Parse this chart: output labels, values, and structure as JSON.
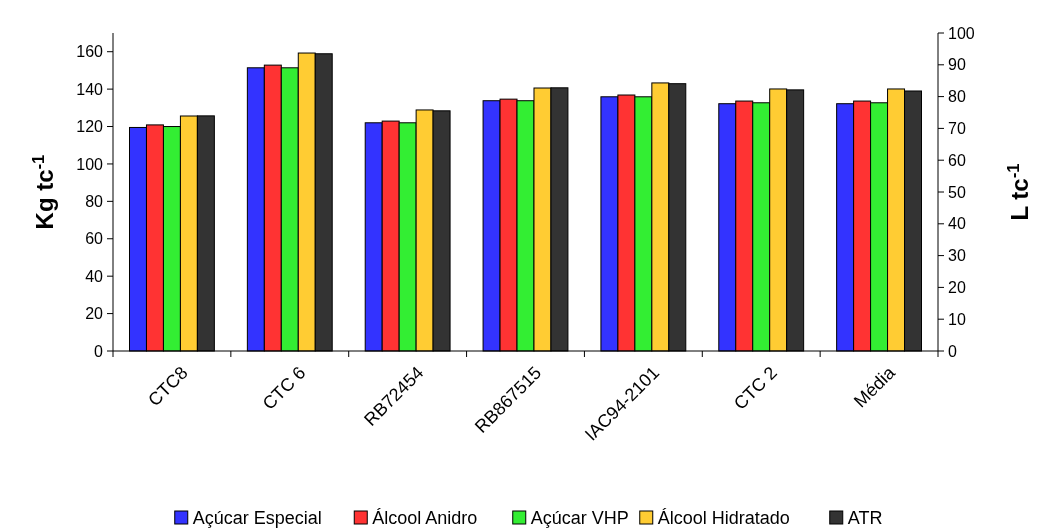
{
  "chart_data": {
    "type": "bar",
    "categories": [
      "CTC8",
      "CTC 6",
      "RB72454",
      "RB867515",
      "IAC94-2101",
      "CTC 2",
      "Média"
    ],
    "ylabel": "Kg tc$^{-1}$",
    "y2label": "L tc$^{-1}$",
    "ylim": [
      0,
      170
    ],
    "yticks": [
      0,
      20,
      40,
      60,
      80,
      100,
      120,
      140,
      160
    ],
    "y2lim": [
      0,
      100
    ],
    "y2ticks": [
      0,
      10,
      20,
      30,
      40,
      50,
      60,
      70,
      80,
      90,
      100
    ],
    "grid": false,
    "legend": "bottom",
    "series": [
      {
        "name": "Açúcar Especial",
        "color": "#3333ff",
        "values": [
          119.5,
          151.4,
          122,
          133.8,
          135.9,
          132.2,
          132.2
        ]
      },
      {
        "name": "Álcool Anidro",
        "color": "#ff3333",
        "axis": "y2",
        "values": [
          71.1,
          89.9,
          72.3,
          79.2,
          80.5,
          78.6,
          78.6
        ]
      },
      {
        "name": "Açúcar VHP",
        "color": "#33ee33",
        "values": [
          120,
          151.4,
          122,
          133.8,
          135.9,
          132.7,
          132.7
        ]
      },
      {
        "name": "Álcool Hidratado",
        "color": "#ffcc33",
        "axis": "y2",
        "values": [
          73.9,
          93.7,
          75.8,
          82.7,
          84.3,
          82.4,
          82.4
        ]
      },
      {
        "name": "ATR",
        "color": "#333333",
        "values": [
          125.7,
          158.9,
          128.4,
          140.7,
          142.9,
          139.6,
          139
        ]
      }
    ]
  }
}
